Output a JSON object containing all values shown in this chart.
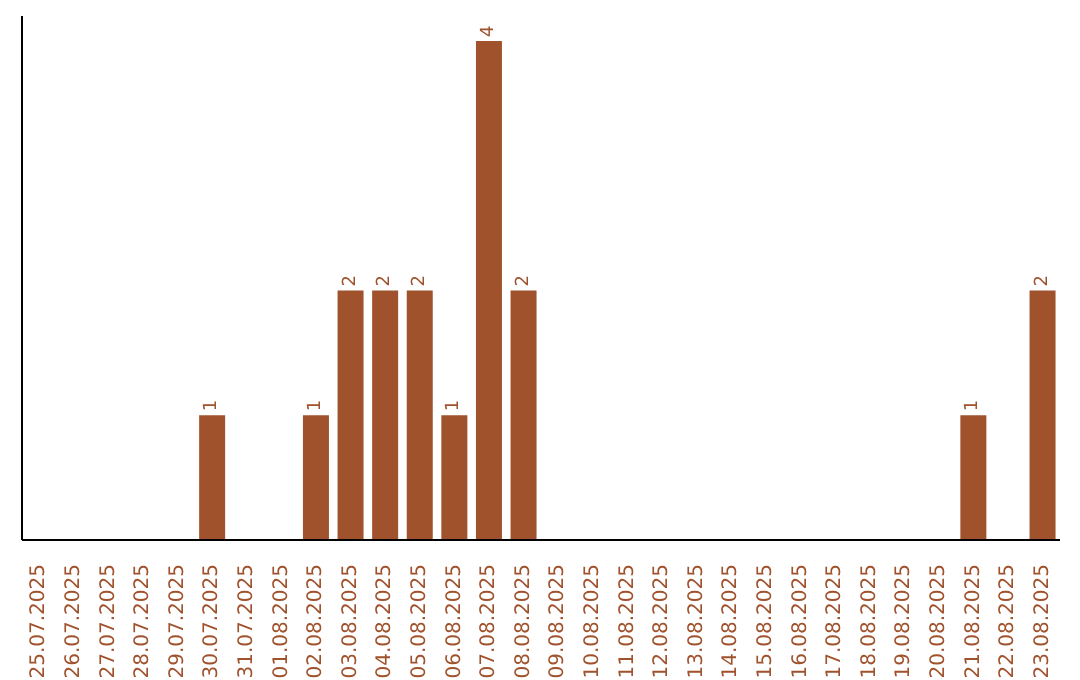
{
  "chart_data": {
    "type": "bar",
    "categories": [
      "25.07.2025",
      "26.07.2025",
      "27.07.2025",
      "28.07.2025",
      "29.07.2025",
      "30.07.2025",
      "31.07.2025",
      "01.08.2025",
      "02.08.2025",
      "03.08.2025",
      "04.08.2025",
      "05.08.2025",
      "06.08.2025",
      "07.08.2025",
      "08.08.2025",
      "09.08.2025",
      "10.08.2025",
      "11.08.2025",
      "12.08.2025",
      "13.08.2025",
      "14.08.2025",
      "15.08.2025",
      "16.08.2025",
      "17.08.2025",
      "18.08.2025",
      "19.08.2025",
      "20.08.2025",
      "21.08.2025",
      "22.08.2025",
      "23.08.2025"
    ],
    "values": [
      0,
      0,
      0,
      0,
      0,
      1,
      0,
      0,
      1,
      2,
      2,
      2,
      1,
      4,
      2,
      0,
      0,
      0,
      0,
      0,
      0,
      0,
      0,
      0,
      0,
      0,
      0,
      1,
      0,
      2
    ],
    "value_labels": [
      null,
      null,
      null,
      null,
      null,
      "1",
      null,
      null,
      "1",
      "2",
      "2",
      "2",
      "1",
      "4",
      "2",
      null,
      null,
      null,
      null,
      null,
      null,
      null,
      null,
      null,
      null,
      null,
      null,
      "1",
      null,
      "2"
    ],
    "color": "#a0522d",
    "grid": false,
    "legend": false
  }
}
